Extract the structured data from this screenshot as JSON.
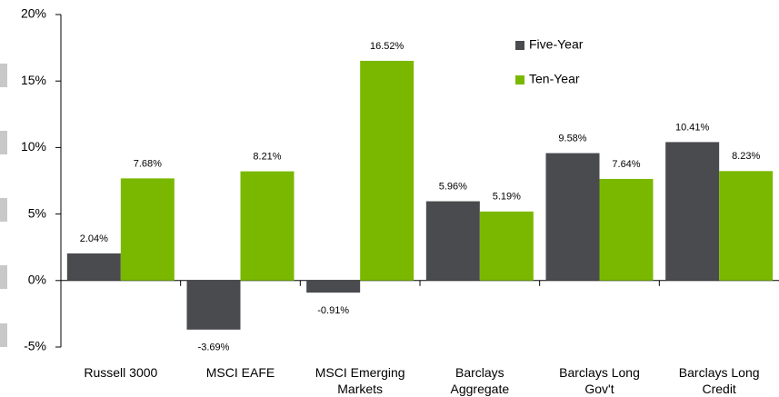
{
  "chart_data": {
    "type": "bar",
    "categories": [
      "Russell 3000",
      "MSCI EAFE",
      "MSCI Emerging Markets",
      "Barclays Aggregate",
      "Barclays Long Gov't",
      "Barclays Long Credit"
    ],
    "series": [
      {
        "name": "Five-Year",
        "color": "#4a4b4f",
        "values": [
          2.04,
          -3.69,
          -0.91,
          5.96,
          9.58,
          10.41
        ],
        "value_labels": [
          "2.04%",
          "-3.69%",
          "-0.91%",
          "5.96%",
          "9.58%",
          "10.41%"
        ]
      },
      {
        "name": "Ten-Year",
        "color": "#7ab800",
        "values": [
          7.68,
          8.21,
          16.52,
          5.19,
          7.64,
          8.23
        ],
        "value_labels": [
          "7.68%",
          "8.21%",
          "16.52%",
          "5.19%",
          "7.64%",
          "8.23%"
        ]
      }
    ],
    "ylim": [
      -5,
      20
    ],
    "yticks": [
      {
        "value": -5,
        "label": "-5%"
      },
      {
        "value": 0,
        "label": "0%"
      },
      {
        "value": 5,
        "label": "5%"
      },
      {
        "value": 10,
        "label": "10%"
      },
      {
        "value": 15,
        "label": "15%"
      },
      {
        "value": 20,
        "label": "20%"
      }
    ],
    "legend": "top-right"
  }
}
